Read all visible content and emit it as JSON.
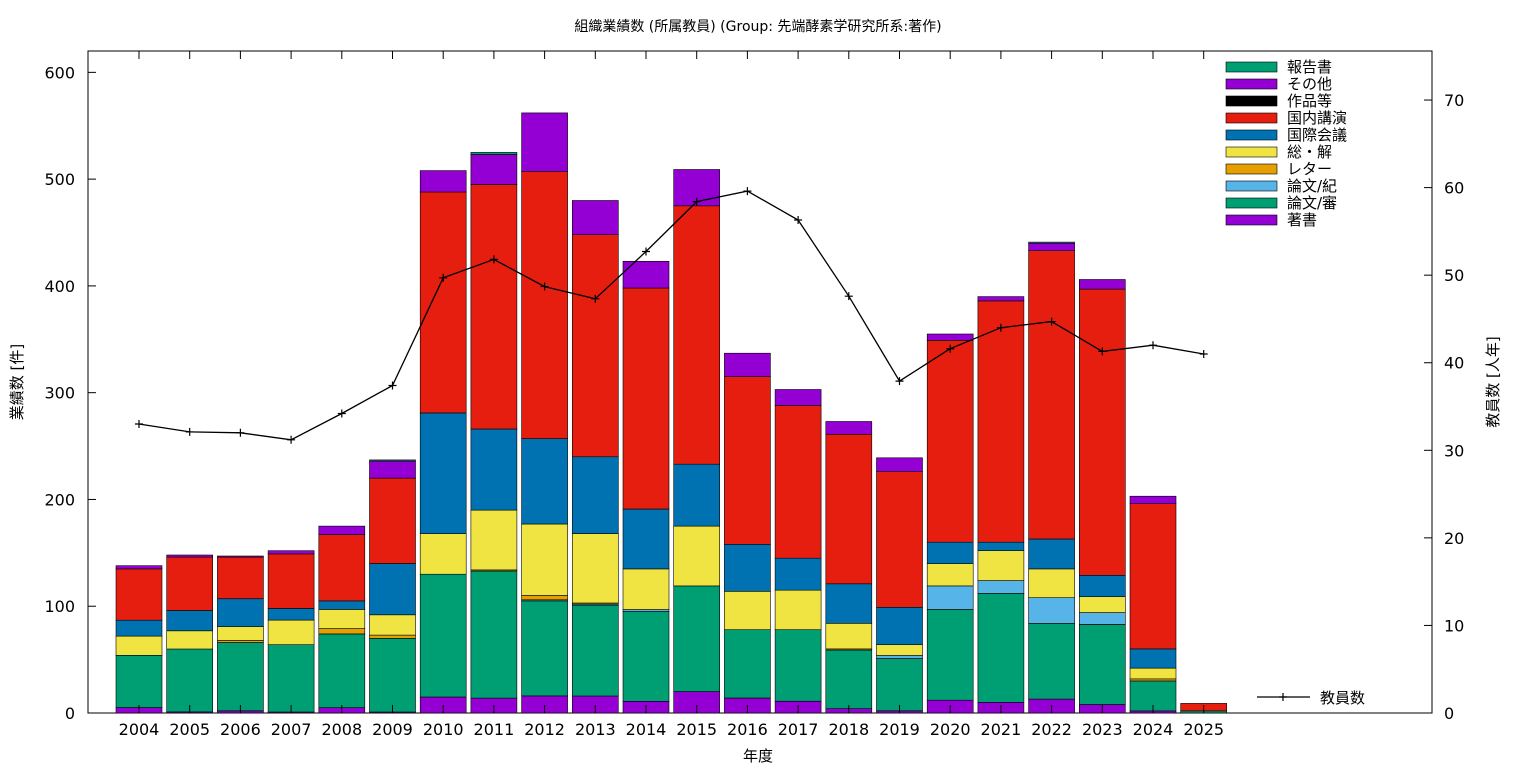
{
  "chart_data": {
    "type": "bar",
    "stacked": true,
    "title": "組織業績数 (所属教員) (Group: 先端酵素学研究所系:著作)",
    "xlabel": "年度",
    "ylabel": "業績数 [件]",
    "y2label": "教員数 [人年]",
    "ylim": [
      0,
      620
    ],
    "y2lim": [
      0,
      75.6
    ],
    "yticks": [
      0,
      100,
      200,
      300,
      400,
      500,
      600
    ],
    "y2ticks": [
      0,
      10,
      20,
      30,
      40,
      50,
      60,
      70
    ],
    "grid": false,
    "legend_position": "top-right",
    "categories": [
      "2004",
      "2005",
      "2006",
      "2007",
      "2008",
      "2009",
      "2010",
      "2011",
      "2012",
      "2013",
      "2014",
      "2015",
      "2016",
      "2017",
      "2018",
      "2019",
      "2020",
      "2021",
      "2022",
      "2023",
      "2024",
      "2025"
    ],
    "series": [
      {
        "name": "著書",
        "color": "#9400d3",
        "values": [
          5,
          1,
          2,
          1,
          5,
          1,
          15,
          14,
          16,
          16,
          11,
          20,
          14,
          11,
          4,
          2,
          12,
          10,
          13,
          8,
          2,
          0
        ]
      },
      {
        "name": "論文/審",
        "color": "#009e73",
        "values": [
          49,
          59,
          64,
          63,
          69,
          69,
          115,
          119,
          89,
          85,
          84,
          99,
          64,
          67,
          55,
          49,
          85,
          102,
          71,
          75,
          28,
          2
        ]
      },
      {
        "name": "論文/紀",
        "color": "#56b4e9",
        "values": [
          0,
          0,
          0,
          0,
          0,
          0,
          0,
          0,
          1,
          1,
          2,
          0,
          0,
          0,
          0,
          3,
          22,
          12,
          24,
          11,
          0,
          0
        ]
      },
      {
        "name": "レター",
        "color": "#e69f00",
        "values": [
          0,
          0,
          2,
          0,
          5,
          3,
          0,
          1,
          4,
          1,
          0,
          0,
          0,
          0,
          1,
          0,
          0,
          0,
          0,
          0,
          2,
          0
        ]
      },
      {
        "name": "総・解",
        "color": "#f0e442",
        "values": [
          18,
          17,
          13,
          23,
          18,
          19,
          38,
          56,
          67,
          65,
          38,
          56,
          36,
          37,
          24,
          10,
          21,
          28,
          27,
          15,
          10,
          0
        ]
      },
      {
        "name": "国際会議",
        "color": "#0072b2",
        "values": [
          15,
          19,
          26,
          11,
          8,
          48,
          113,
          76,
          80,
          72,
          56,
          58,
          44,
          30,
          37,
          35,
          20,
          8,
          28,
          20,
          18,
          0
        ]
      },
      {
        "name": "国内講演",
        "color": "#e51e10",
        "values": [
          48,
          50,
          39,
          51,
          62,
          80,
          207,
          229,
          250,
          208,
          207,
          242,
          157,
          143,
          140,
          127,
          189,
          226,
          270,
          268,
          136,
          7
        ]
      },
      {
        "name": "作品等",
        "color": "#000000",
        "values": [
          0,
          0,
          0,
          0,
          0,
          0,
          0,
          0,
          0,
          0,
          0,
          0,
          0,
          0,
          0,
          0,
          0,
          0,
          0,
          0,
          0,
          0
        ]
      },
      {
        "name": "その他",
        "color": "#9400d3",
        "values": [
          3,
          2,
          1,
          3,
          8,
          16,
          20,
          28,
          55,
          32,
          25,
          34,
          22,
          15,
          12,
          13,
          6,
          4,
          7,
          9,
          7,
          0
        ]
      },
      {
        "name": "報告書",
        "color": "#009e73",
        "values": [
          0,
          0,
          0,
          0,
          0,
          1,
          0,
          2,
          0,
          0,
          0,
          0,
          0,
          0,
          0,
          0,
          0,
          0,
          1,
          0,
          0,
          0
        ]
      }
    ],
    "line_series": {
      "name": "教員数",
      "axis": "right",
      "color": "#000000",
      "values": [
        33.0,
        32.1,
        32.0,
        31.2,
        34.2,
        37.4,
        49.7,
        51.8,
        48.7,
        47.3,
        52.7,
        58.4,
        59.6,
        56.3,
        47.6,
        37.9,
        41.6,
        44.0,
        44.7,
        41.3,
        42.0,
        41.0
      ]
    }
  }
}
